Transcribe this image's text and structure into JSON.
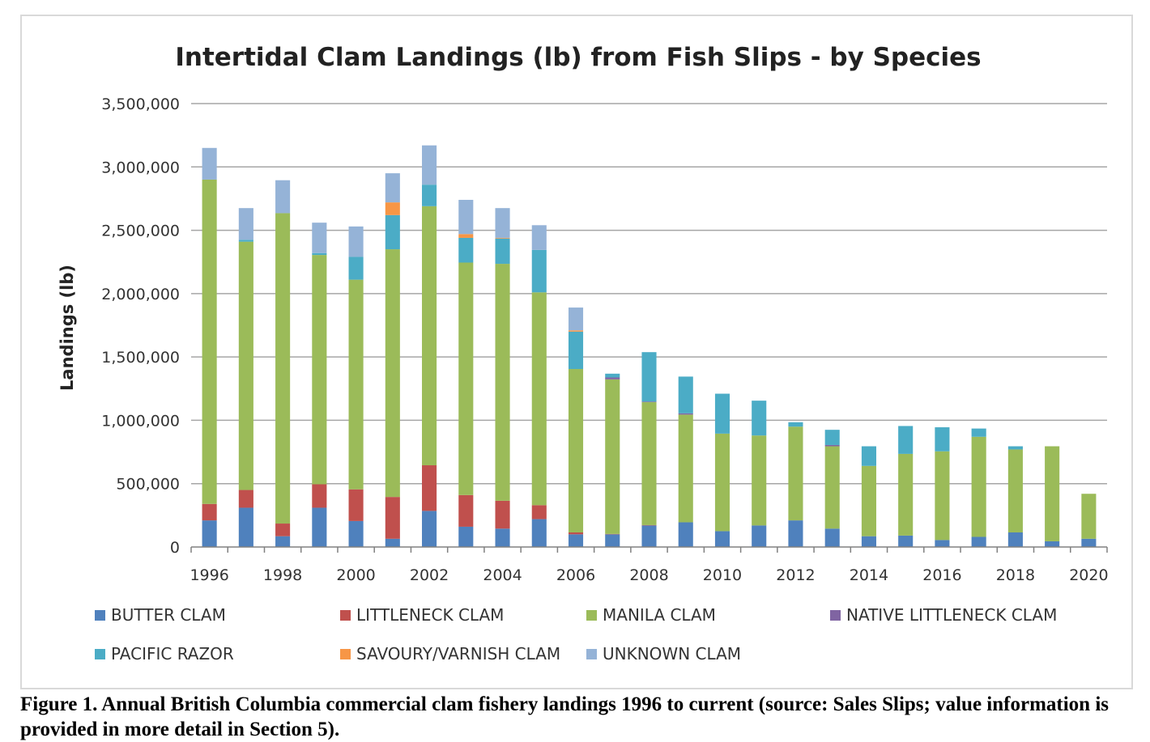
{
  "chart_data": {
    "type": "bar",
    "stacked": true,
    "title": "Intertidal Clam Landings (lb) from Fish Slips - by Species",
    "xlabel": "",
    "ylabel": "Landings (lb)",
    "ylim": [
      0,
      3500000
    ],
    "yticks": [
      "0",
      "500,000",
      "1,000,000",
      "1,500,000",
      "2,000,000",
      "2,500,000",
      "3,000,000",
      "3,500,000"
    ],
    "categories": [
      "1996",
      "1997",
      "1998",
      "1999",
      "2000",
      "2001",
      "2002",
      "2003",
      "2004",
      "2005",
      "2006",
      "2007",
      "2008",
      "2009",
      "2010",
      "2011",
      "2012",
      "2013",
      "2014",
      "2015",
      "2016",
      "2017",
      "2018",
      "2019",
      "2020"
    ],
    "xtick_labels": [
      "1996",
      "",
      "1998",
      "",
      "2000",
      "",
      "2002",
      "",
      "2004",
      "",
      "2006",
      "",
      "2008",
      "",
      "2010",
      "",
      "2012",
      "",
      "2014",
      "",
      "2016",
      "",
      "2018",
      "",
      "2020"
    ],
    "grid": true,
    "legend_position": "bottom",
    "series": [
      {
        "name": "BUTTER CLAM",
        "color": "#4f81bd",
        "values": [
          210000,
          310000,
          85000,
          310000,
          205000,
          65000,
          285000,
          160000,
          145000,
          220000,
          100000,
          100000,
          170000,
          195000,
          125000,
          170000,
          210000,
          145000,
          85000,
          90000,
          55000,
          80000,
          115000,
          45000,
          65000
        ]
      },
      {
        "name": "LITTLENECK CLAM",
        "color": "#c0504d",
        "values": [
          130000,
          140000,
          100000,
          185000,
          250000,
          330000,
          360000,
          250000,
          220000,
          110000,
          15000,
          3000,
          3000,
          0,
          0,
          0,
          0,
          0,
          0,
          0,
          0,
          0,
          0,
          0,
          0
        ]
      },
      {
        "name": "MANILA CLAM",
        "color": "#9bbb59",
        "values": [
          2560000,
          1960000,
          2450000,
          1810000,
          1655000,
          1955000,
          2045000,
          1835000,
          1870000,
          1680000,
          1290000,
          1220000,
          970000,
          850000,
          770000,
          710000,
          740000,
          650000,
          555000,
          645000,
          700000,
          790000,
          655000,
          750000,
          355000
        ]
      },
      {
        "name": "NATIVE LITTLENECK CLAM",
        "color": "#8064a2",
        "values": [
          0,
          0,
          0,
          0,
          0,
          0,
          0,
          0,
          0,
          0,
          0,
          15000,
          5000,
          10000,
          0,
          0,
          0,
          10000,
          0,
          0,
          0,
          0,
          0,
          0,
          0
        ]
      },
      {
        "name": "PACIFIC RAZOR",
        "color": "#4bacc6",
        "values": [
          0,
          15000,
          0,
          15000,
          180000,
          270000,
          170000,
          195000,
          200000,
          335000,
          295000,
          30000,
          390000,
          290000,
          315000,
          275000,
          35000,
          120000,
          155000,
          220000,
          190000,
          65000,
          25000,
          0,
          0
        ]
      },
      {
        "name": "SAVOURY/VARNISH CLAM",
        "color": "#f79646",
        "values": [
          0,
          0,
          0,
          0,
          0,
          100000,
          0,
          30000,
          5000,
          0,
          10000,
          0,
          0,
          0,
          0,
          0,
          0,
          0,
          0,
          0,
          0,
          0,
          0,
          0,
          0
        ]
      },
      {
        "name": "UNKNOWN CLAM",
        "color": "#95b3d7",
        "values": [
          250000,
          250000,
          260000,
          240000,
          240000,
          230000,
          310000,
          270000,
          235000,
          195000,
          180000,
          0,
          0,
          0,
          0,
          0,
          0,
          0,
          0,
          0,
          0,
          0,
          0,
          0,
          0
        ]
      }
    ]
  },
  "caption": "Figure 1. Annual British Columbia commercial clam fishery landings 1996 to current (source: Sales Slips; value information is provided in more detail in Section 5)."
}
